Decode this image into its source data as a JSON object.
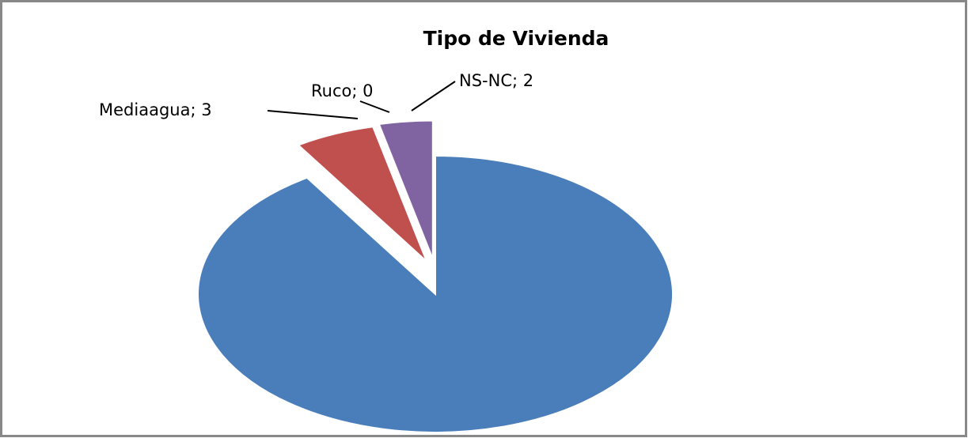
{
  "chart_data": {
    "type": "pie",
    "title": "Tipo de Vivienda",
    "categories": [
      null,
      "Mediaagua",
      "Ruco",
      "NS-NC"
    ],
    "values": [
      50,
      3,
      0,
      2
    ],
    "value_labels": [
      null,
      "; 3",
      "; 0",
      "; 2"
    ],
    "colors": [
      "#4a7ebb",
      "#c0504d",
      "#9bbb59",
      "#8064a2"
    ]
  }
}
